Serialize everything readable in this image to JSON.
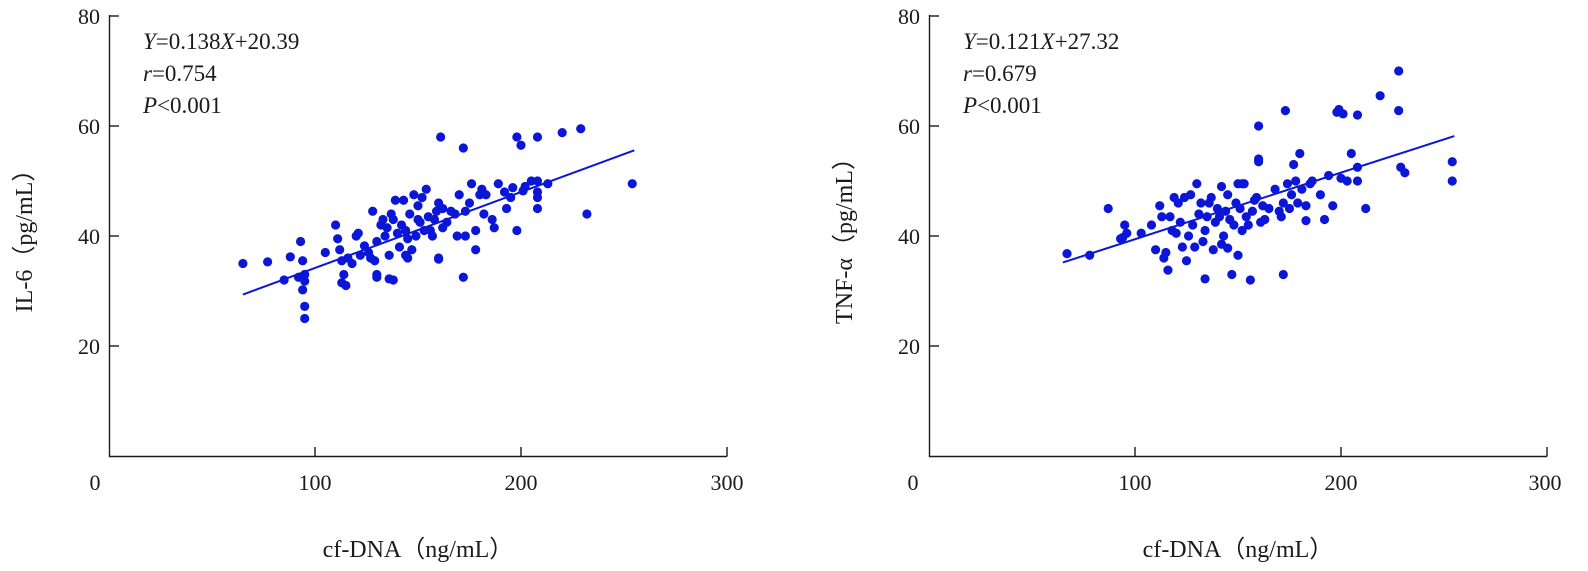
{
  "colors": {
    "points": "#0b16d6",
    "fit_line": "#0b16d6",
    "axes": "#1a1a1a"
  },
  "chart_data": [
    {
      "type": "scatter",
      "ylabel": "IL-6（pg/mL）",
      "xlabel": "cf-DNA（ng/mL）",
      "xlim": [
        0,
        300
      ],
      "ylim": [
        0,
        80
      ],
      "x_ticks": [
        "0",
        "100",
        "200",
        "300"
      ],
      "y_ticks": [
        "20",
        "40",
        "60",
        "80"
      ],
      "annotation": {
        "eq_prefix": "Y",
        "eq_mid": "=0.138",
        "eq_var": "X",
        "eq_tail": "+20.39",
        "r_prefix": "r",
        "r_val": "=0.754",
        "p_prefix": "P",
        "p_val": "<0.001"
      },
      "fit": {
        "slope": 0.138,
        "intercept": 20.39,
        "x_range": [
          65,
          255
        ]
      },
      "points": [
        [
          65,
          35
        ],
        [
          77,
          35.3
        ],
        [
          85,
          32
        ],
        [
          88,
          36.2
        ],
        [
          93,
          39
        ],
        [
          94,
          35.5
        ],
        [
          95,
          33
        ],
        [
          95,
          31.8
        ],
        [
          94,
          30.2
        ],
        [
          95,
          27.2
        ],
        [
          95,
          25
        ],
        [
          92,
          32.5
        ],
        [
          105,
          37
        ],
        [
          110,
          42
        ],
        [
          111,
          39.5
        ],
        [
          112,
          37.5
        ],
        [
          113,
          35.5
        ],
        [
          114,
          33
        ],
        [
          115,
          31
        ],
        [
          113,
          31.5
        ],
        [
          116,
          36
        ],
        [
          118,
          35
        ],
        [
          120,
          40
        ],
        [
          121,
          40.5
        ],
        [
          122,
          36.5
        ],
        [
          124,
          38.2
        ],
        [
          126,
          37
        ],
        [
          127,
          36
        ],
        [
          128,
          44.5
        ],
        [
          129,
          35.5
        ],
        [
          130,
          33
        ],
        [
          130,
          39
        ],
        [
          132,
          42
        ],
        [
          133,
          43
        ],
        [
          134,
          40
        ],
        [
          135,
          41.5
        ],
        [
          136,
          36.5
        ],
        [
          136,
          32.2
        ],
        [
          137,
          44
        ],
        [
          138,
          43
        ],
        [
          139,
          46.5
        ],
        [
          140,
          40.5
        ],
        [
          141,
          38
        ],
        [
          142,
          42
        ],
        [
          143,
          46.5
        ],
        [
          144,
          36.5
        ],
        [
          144,
          41
        ],
        [
          145,
          39.5
        ],
        [
          146,
          44
        ],
        [
          147,
          37.5
        ],
        [
          148,
          47.5
        ],
        [
          149,
          40
        ],
        [
          150,
          45.5
        ],
        [
          150,
          43
        ],
        [
          151,
          42.5
        ],
        [
          152,
          47
        ],
        [
          153,
          41
        ],
        [
          154,
          48.5
        ],
        [
          155,
          43.5
        ],
        [
          156,
          41
        ],
        [
          157,
          40
        ],
        [
          158,
          43
        ],
        [
          159,
          44.5
        ],
        [
          160,
          46
        ],
        [
          160,
          35.8
        ],
        [
          161,
          58
        ],
        [
          162,
          45
        ],
        [
          162,
          41.5
        ],
        [
          164,
          42.5
        ],
        [
          168,
          44
        ],
        [
          169,
          40
        ],
        [
          170,
          47.5
        ],
        [
          172,
          56
        ],
        [
          172,
          32.5
        ],
        [
          173,
          44.5
        ],
        [
          173,
          40
        ],
        [
          175,
          46
        ],
        [
          176,
          49.5
        ],
        [
          178,
          37.5
        ],
        [
          178,
          41
        ],
        [
          180,
          47.5
        ],
        [
          181,
          48.5
        ],
        [
          182,
          44
        ],
        [
          183,
          47.5
        ],
        [
          186,
          43
        ],
        [
          187,
          41.5
        ],
        [
          189,
          49.5
        ],
        [
          192,
          48
        ],
        [
          193,
          45
        ],
        [
          195,
          47
        ],
        [
          196,
          48.8
        ],
        [
          198,
          58
        ],
        [
          198,
          41
        ],
        [
          200,
          56.5
        ],
        [
          201,
          48.2
        ],
        [
          202,
          49
        ],
        [
          205,
          50
        ],
        [
          208,
          58
        ],
        [
          208,
          50
        ],
        [
          208,
          48
        ],
        [
          208,
          45
        ],
        [
          208,
          47
        ],
        [
          213,
          49.5
        ],
        [
          220,
          58.8
        ],
        [
          229,
          59.5
        ],
        [
          232,
          44
        ],
        [
          254,
          49.5
        ],
        [
          160,
          36
        ],
        [
          130,
          32.5
        ],
        [
          145,
          36
        ],
        [
          138,
          32
        ],
        [
          166,
          44.5
        ]
      ]
    },
    {
      "type": "scatter",
      "ylabel": "TNF-α（pg/mL）",
      "xlabel": "cf-DNA（ng/mL）",
      "xlim": [
        0,
        300
      ],
      "ylim": [
        0,
        80
      ],
      "x_ticks": [
        "0",
        "100",
        "200",
        "300"
      ],
      "y_ticks": [
        "20",
        "40",
        "60",
        "80"
      ],
      "annotation": {
        "eq_prefix": "Y",
        "eq_mid": "=0.121",
        "eq_var": "X",
        "eq_tail": "+27.32",
        "r_prefix": "r",
        "r_val": "=0.679",
        "p_prefix": "P",
        "p_val": "<0.001"
      },
      "fit": {
        "slope": 0.121,
        "intercept": 27.32,
        "x_range": [
          65,
          255
        ]
      },
      "points": [
        [
          67,
          36.8
        ],
        [
          78,
          36.5
        ],
        [
          87,
          45
        ],
        [
          93,
          39.5
        ],
        [
          94,
          39.7
        ],
        [
          95,
          42
        ],
        [
          96,
          40.5
        ],
        [
          103,
          40.5
        ],
        [
          108,
          42
        ],
        [
          110,
          37.5
        ],
        [
          112,
          45.5
        ],
        [
          113,
          43.5
        ],
        [
          114,
          36
        ],
        [
          115,
          37
        ],
        [
          116,
          33.8
        ],
        [
          117,
          43.5
        ],
        [
          118,
          41
        ],
        [
          119,
          47
        ],
        [
          120,
          40.5
        ],
        [
          121,
          46
        ],
        [
          122,
          42.5
        ],
        [
          124,
          47
        ],
        [
          125,
          35.5
        ],
        [
          126,
          40
        ],
        [
          127,
          47.5
        ],
        [
          128,
          42
        ],
        [
          129,
          38
        ],
        [
          130,
          49.5
        ],
        [
          131,
          44
        ],
        [
          132,
          46
        ],
        [
          133,
          39
        ],
        [
          134,
          41
        ],
        [
          134,
          32.2
        ],
        [
          135,
          43.5
        ],
        [
          136,
          46
        ],
        [
          137,
          47
        ],
        [
          138,
          37.5
        ],
        [
          139,
          42.5
        ],
        [
          140,
          45
        ],
        [
          141,
          43.5
        ],
        [
          142,
          49
        ],
        [
          143,
          40
        ],
        [
          144,
          44.5
        ],
        [
          145,
          37.8
        ],
        [
          145,
          47.5
        ],
        [
          146,
          43
        ],
        [
          147,
          33
        ],
        [
          148,
          42
        ],
        [
          149,
          46
        ],
        [
          150,
          49.5
        ],
        [
          150,
          36.5
        ],
        [
          151,
          45
        ],
        [
          152,
          41
        ],
        [
          153,
          49.5
        ],
        [
          154,
          43.5
        ],
        [
          155,
          42
        ],
        [
          156,
          32
        ],
        [
          157,
          44.5
        ],
        [
          158,
          46.5
        ],
        [
          159,
          47
        ],
        [
          160,
          53.5
        ],
        [
          160,
          60
        ],
        [
          160,
          54
        ],
        [
          161,
          42.5
        ],
        [
          162,
          45.5
        ],
        [
          163,
          43
        ],
        [
          165,
          45
        ],
        [
          168,
          48.5
        ],
        [
          170,
          44.5
        ],
        [
          171,
          43.5
        ],
        [
          172,
          33
        ],
        [
          172,
          46
        ],
        [
          173,
          62.8
        ],
        [
          174,
          49.5
        ],
        [
          175,
          45
        ],
        [
          176,
          47.5
        ],
        [
          177,
          53
        ],
        [
          178,
          50
        ],
        [
          179,
          46
        ],
        [
          180,
          55
        ],
        [
          181,
          48.5
        ],
        [
          183,
          42.8
        ],
        [
          185,
          49.5
        ],
        [
          186,
          50
        ],
        [
          190,
          47.5
        ],
        [
          192,
          43
        ],
        [
          194,
          51
        ],
        [
          196,
          45.5
        ],
        [
          198,
          62.5
        ],
        [
          199,
          63
        ],
        [
          200,
          50.5
        ],
        [
          201,
          62.2
        ],
        [
          203,
          50
        ],
        [
          205,
          55
        ],
        [
          208,
          62
        ],
        [
          208,
          52.5
        ],
        [
          208,
          50
        ],
        [
          212,
          45
        ],
        [
          219,
          65.5
        ],
        [
          228,
          70
        ],
        [
          228,
          62.8
        ],
        [
          229,
          52.5
        ],
        [
          231,
          51.5
        ],
        [
          254,
          53.5
        ],
        [
          254,
          50
        ],
        [
          183,
          45.5
        ],
        [
          152,
          49.5
        ],
        [
          123,
          38
        ],
        [
          142,
          38.5
        ]
      ]
    }
  ]
}
